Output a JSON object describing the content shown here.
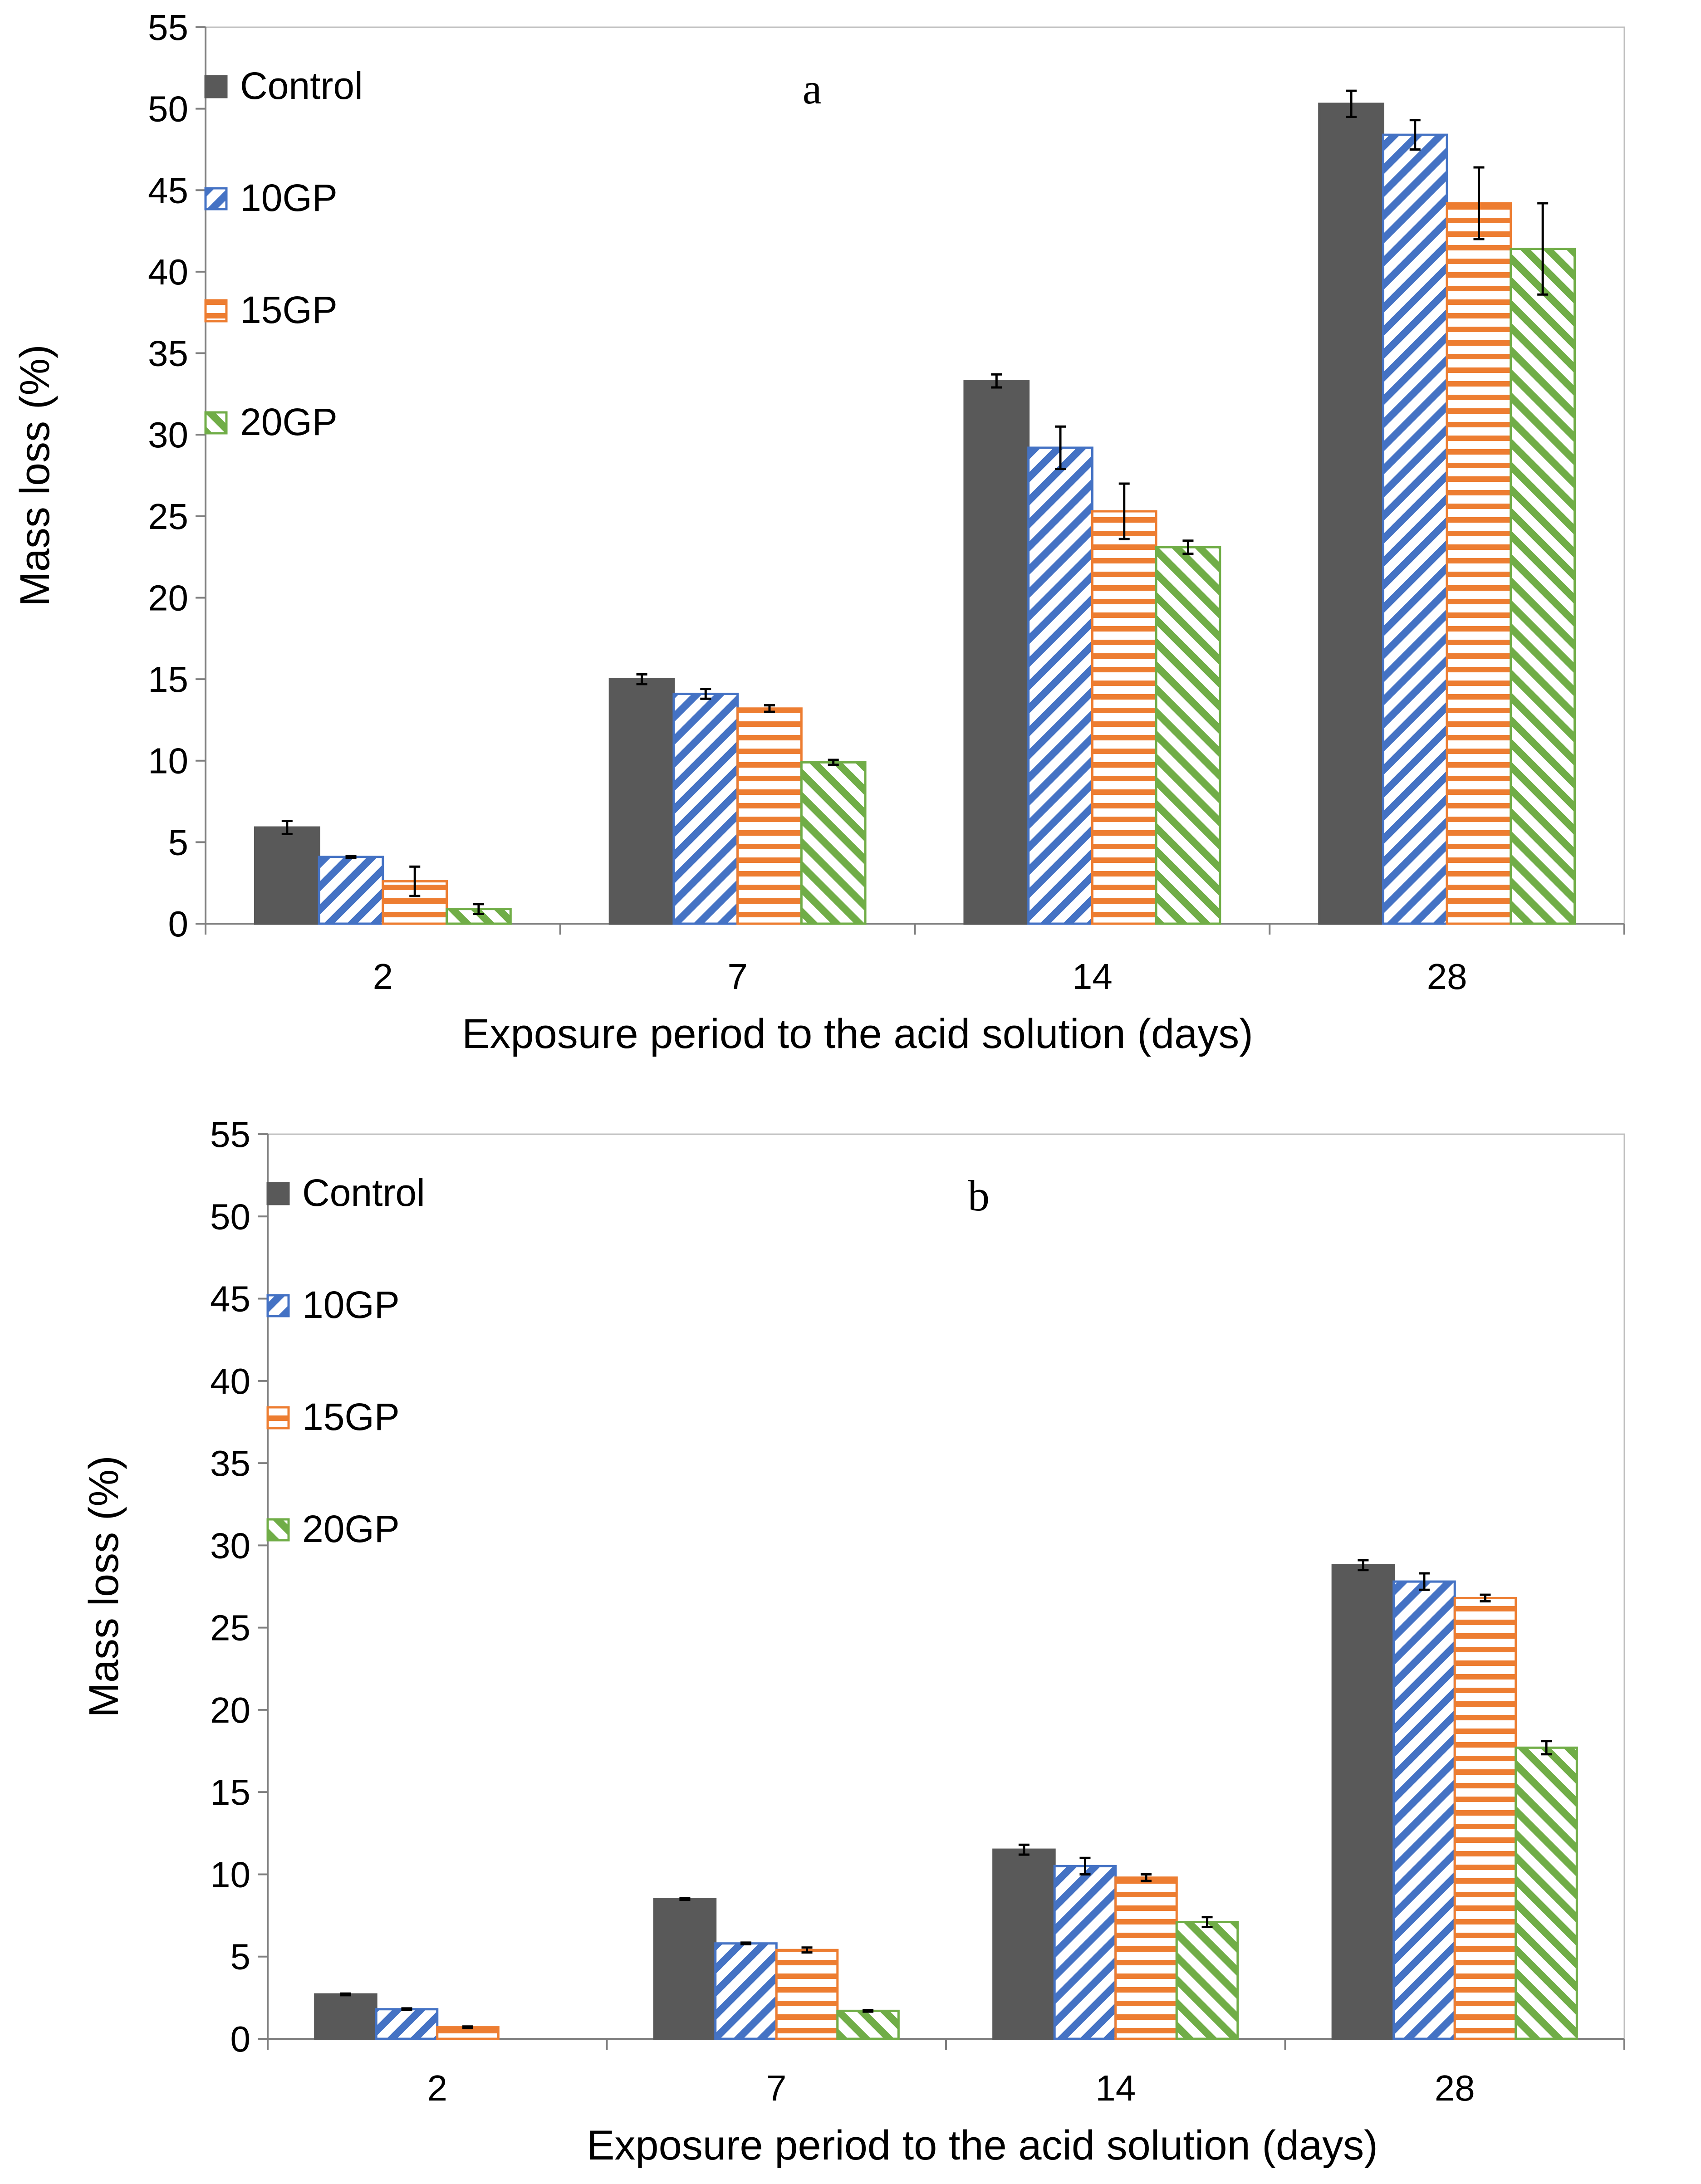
{
  "chart_data": [
    {
      "type": "bar",
      "panel_label": "a",
      "xlabel": "Exposure period to the acid solution (days)",
      "ylabel": "Mass loss (%)",
      "ylim": [
        0,
        55
      ],
      "yticks": [
        0,
        5,
        10,
        15,
        20,
        25,
        30,
        35,
        40,
        45,
        50,
        55
      ],
      "grid": false,
      "legend_position": "top-left",
      "categories": [
        "2",
        "7",
        "14",
        "28"
      ],
      "series": [
        {
          "name": "Control",
          "color": "#595959",
          "pattern": "solid",
          "values": [
            5.9,
            15.0,
            33.3,
            50.3
          ],
          "errors": [
            0.4,
            0.3,
            0.4,
            0.8
          ]
        },
        {
          "name": "10GP",
          "color": "#4472C4",
          "pattern": "diagonal-down",
          "values": [
            4.1,
            14.1,
            29.2,
            48.4
          ],
          "errors": [
            0.05,
            0.3,
            1.3,
            0.9
          ]
        },
        {
          "name": "15GP",
          "color": "#ED7D31",
          "pattern": "horizontal",
          "values": [
            2.6,
            13.2,
            25.3,
            44.2
          ],
          "errors": [
            0.9,
            0.2,
            1.7,
            2.2
          ]
        },
        {
          "name": "20GP",
          "color": "#70AD47",
          "pattern": "diagonal-up",
          "values": [
            0.9,
            9.9,
            23.1,
            41.4
          ],
          "errors": [
            0.3,
            0.15,
            0.4,
            2.8
          ]
        }
      ]
    },
    {
      "type": "bar",
      "panel_label": "b",
      "xlabel": "Exposure period to the acid solution (days)",
      "ylabel": "Mass loss (%)",
      "ylim": [
        0,
        55
      ],
      "yticks": [
        0,
        5,
        10,
        15,
        20,
        25,
        30,
        35,
        40,
        45,
        50,
        55
      ],
      "grid": false,
      "legend_position": "top-left",
      "categories": [
        "2",
        "7",
        "14",
        "28"
      ],
      "series": [
        {
          "name": "Control",
          "color": "#595959",
          "pattern": "solid",
          "values": [
            2.7,
            8.5,
            11.5,
            28.8
          ],
          "errors": [
            0.05,
            0.05,
            0.3,
            0.3
          ]
        },
        {
          "name": "10GP",
          "color": "#4472C4",
          "pattern": "diagonal-down",
          "values": [
            1.8,
            5.8,
            10.5,
            27.8
          ],
          "errors": [
            0.05,
            0.05,
            0.5,
            0.5
          ]
        },
        {
          "name": "15GP",
          "color": "#ED7D31",
          "pattern": "horizontal",
          "values": [
            0.7,
            5.4,
            9.8,
            26.8
          ],
          "errors": [
            0.05,
            0.15,
            0.2,
            0.2
          ]
        },
        {
          "name": "20GP",
          "color": "#70AD47",
          "pattern": "diagonal-up",
          "values": [
            0.0,
            1.7,
            7.1,
            17.7
          ],
          "errors": [
            0,
            0.05,
            0.3,
            0.4
          ]
        }
      ]
    }
  ]
}
